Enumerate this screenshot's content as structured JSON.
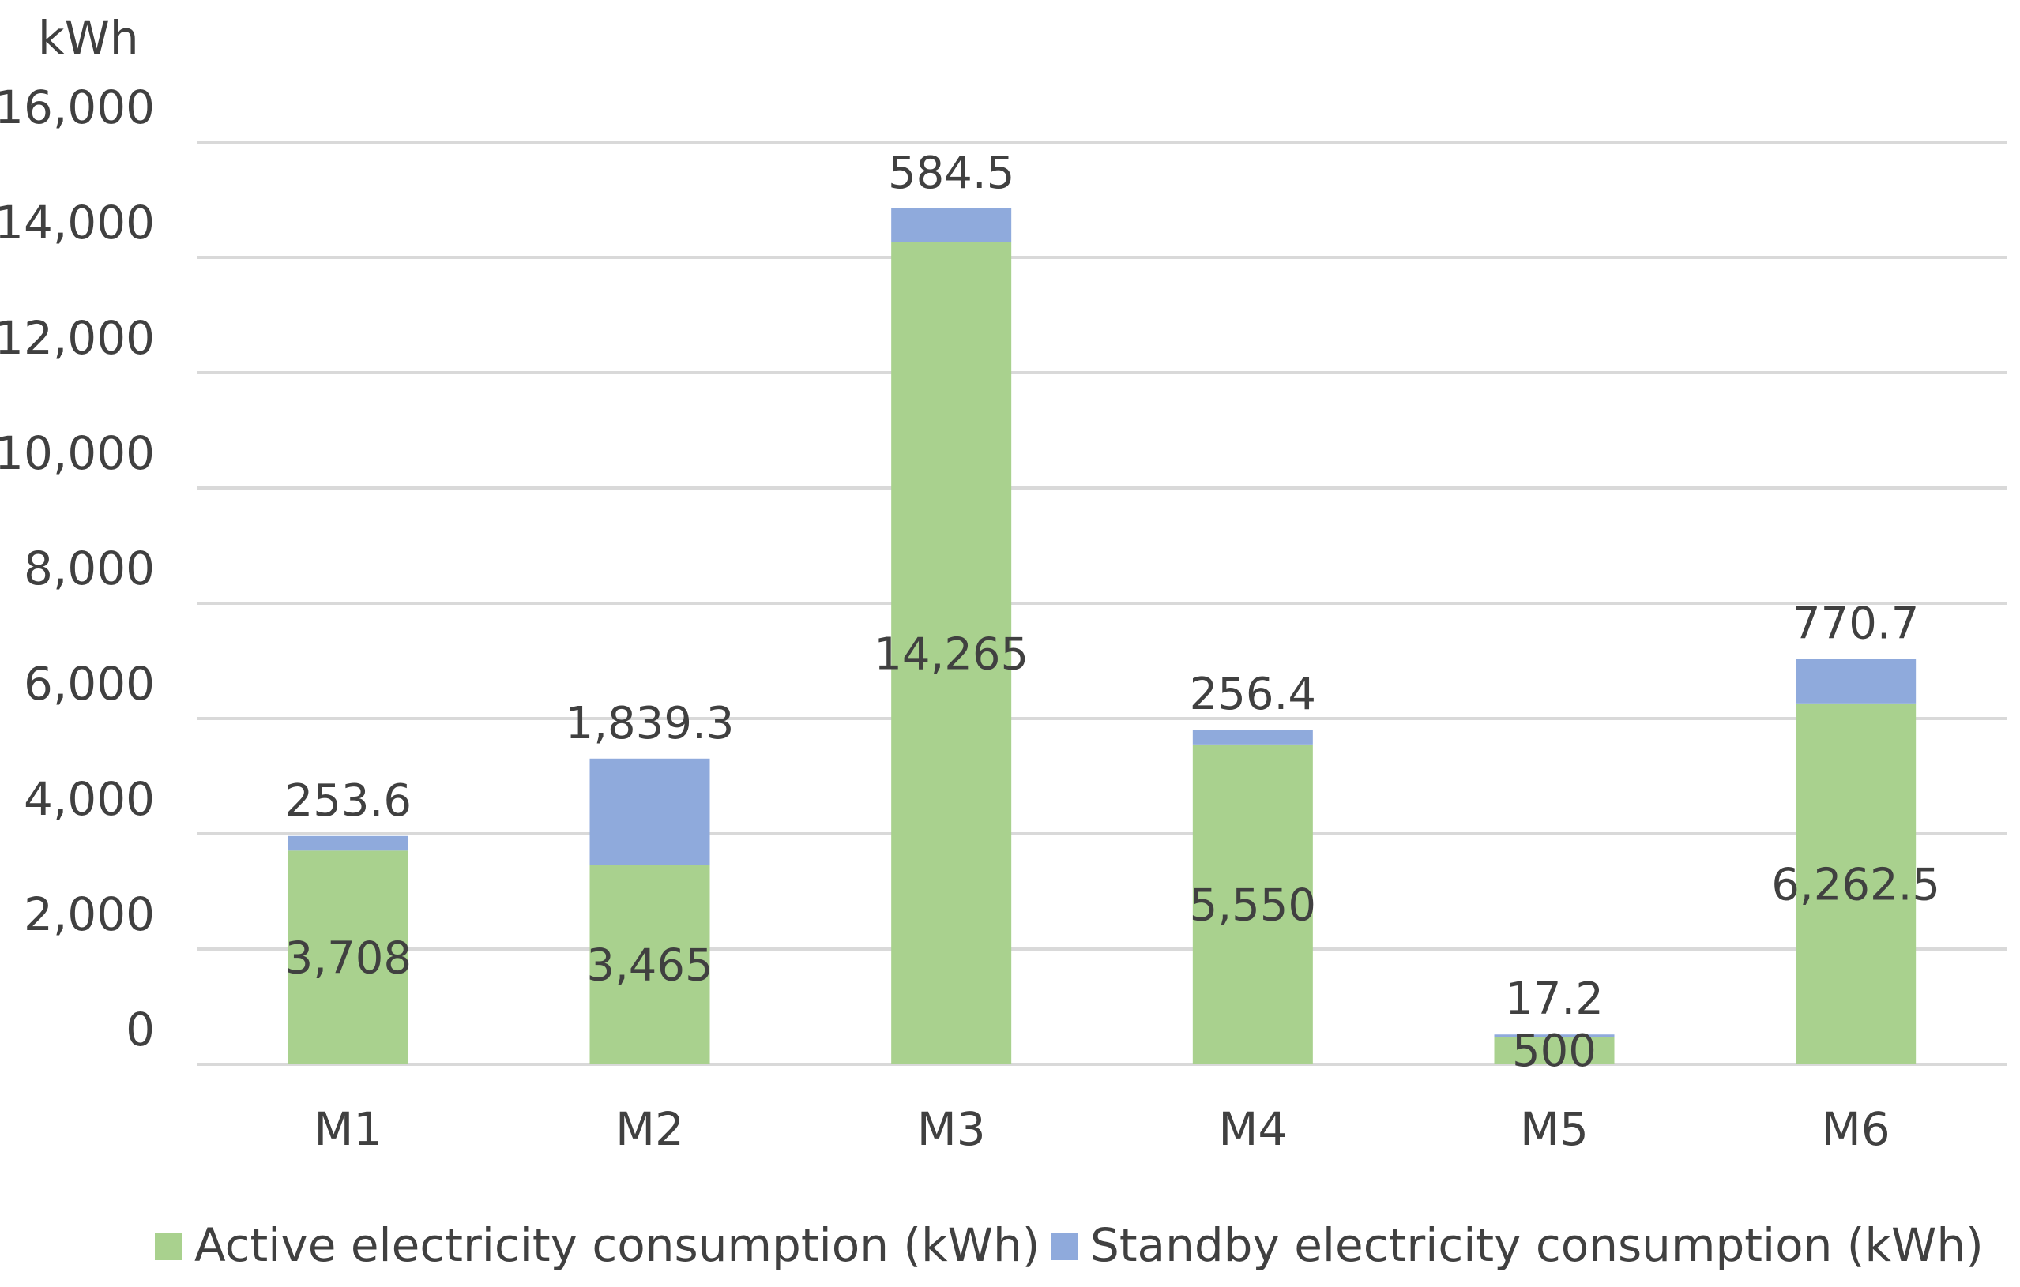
{
  "chart_data": {
    "type": "bar",
    "stacked": true,
    "title": "",
    "xlabel": "",
    "ylabel": "kWh",
    "ylim": [
      0,
      16000
    ],
    "yticks": [
      0,
      2000,
      4000,
      6000,
      8000,
      10000,
      12000,
      14000,
      16000
    ],
    "ytick_labels": [
      "0",
      "2,000",
      "4,000",
      "6,000",
      "8,000",
      "10,000",
      "12,000",
      "14,000",
      "16,000"
    ],
    "grid": true,
    "legend_position": "bottom",
    "categories": [
      "M1",
      "M2",
      "M3",
      "M4",
      "M5",
      "M6"
    ],
    "series": [
      {
        "name": "Active electricity consumption (kWh)",
        "color": "#a9d18e",
        "values": [
          3708,
          3465,
          14265,
          5550,
          500,
          6262.5
        ],
        "data_labels": [
          "3,708",
          "3,465",
          "14,265",
          "5,550",
          "500",
          "6,262.5"
        ]
      },
      {
        "name": "Standby electricity consumption (kWh)",
        "color": "#8faadc",
        "values": [
          253.6,
          1839.3,
          584.5,
          256.4,
          17.2,
          770.7
        ],
        "data_labels": [
          "253.6",
          "1,839.3",
          "584.5",
          "256.4",
          "17.2",
          "770.7"
        ]
      }
    ]
  }
}
